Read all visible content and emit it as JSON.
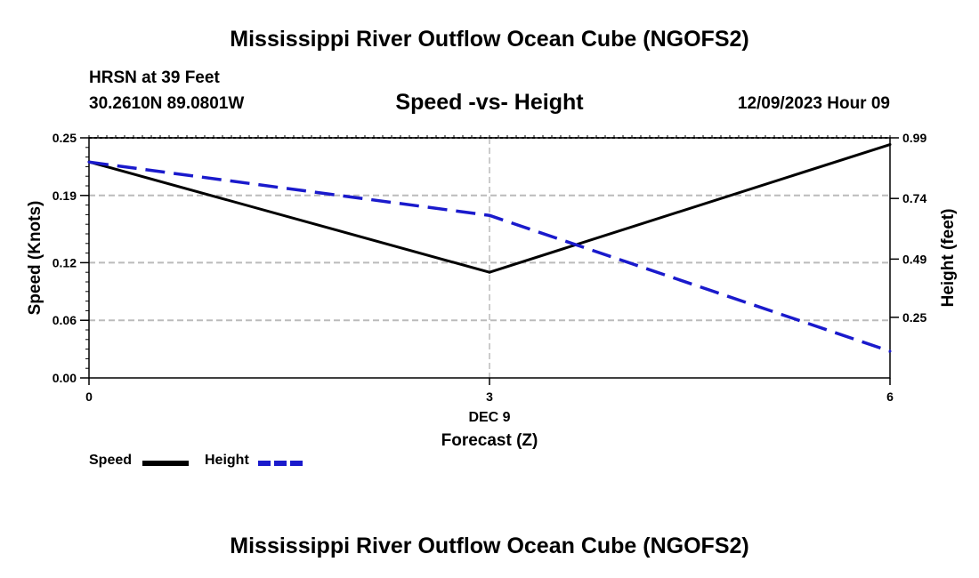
{
  "header": {
    "title": "Mississippi River Outflow Ocean Cube (NGOFS2)",
    "station": "HRSN at 39 Feet",
    "coords": "30.2610N  89.0801W",
    "subtitle": "Speed -vs- Height",
    "datetime": "12/09/2023 Hour 09"
  },
  "footer": {
    "title": "Mississippi River Outflow Ocean Cube (NGOFS2)"
  },
  "colors": {
    "speed": "#000000",
    "height": "#1a1acc",
    "grid": "#bbbbbb"
  },
  "chart_data": {
    "type": "line",
    "title": "Speed -vs- Height",
    "xlabel": "Forecast (Z)",
    "x_tick_labels": [
      "0",
      "3",
      "6"
    ],
    "x_sublabel": "DEC 9",
    "x": [
      0,
      3,
      6
    ],
    "xlim": [
      0,
      6
    ],
    "ylabel_left": "Speed (Knots)",
    "ylim_left": [
      0,
      0.25
    ],
    "yticks_left": [
      "0.00",
      "0.06",
      "0.12",
      "0.19",
      "0.25"
    ],
    "ylabel_right": "Height (feet)",
    "ylim_right": [
      0,
      0.99
    ],
    "yticks_right": [
      "0.25",
      "0.49",
      "0.74",
      "0.99"
    ],
    "grid": true,
    "series": [
      {
        "name": "Speed",
        "axis": "left",
        "style": "solid",
        "values": [
          0.225,
          0.11,
          0.243
        ]
      },
      {
        "name": "Height",
        "axis": "right",
        "style": "dashed",
        "values": [
          0.89,
          0.67,
          0.11
        ]
      }
    ],
    "legend": [
      "Speed",
      "Height"
    ]
  }
}
